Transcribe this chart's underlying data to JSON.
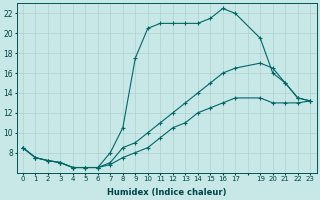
{
  "title": "",
  "xlabel": "Humidex (Indice chaleur)",
  "ylabel": "",
  "xlim": [
    -0.5,
    23.5
  ],
  "ylim": [
    6,
    23
  ],
  "yticks": [
    8,
    10,
    12,
    14,
    16,
    18,
    20,
    22
  ],
  "xtick_labels": [
    "0",
    "1",
    "2",
    "3",
    "4",
    "5",
    "6",
    "7",
    "8",
    "9",
    "10",
    "11",
    "12",
    "13",
    "14",
    "15",
    "16",
    "17",
    "",
    "19",
    "20",
    "21",
    "22",
    "23"
  ],
  "background_color": "#c8e8e8",
  "grid_color": "#b0d0d0",
  "line_color": "#006666",
  "line_width": 0.8,
  "marker": "P",
  "marker_size": 2.5,
  "series": [
    {
      "x": [
        0,
        1,
        2,
        3,
        4,
        5,
        6,
        7,
        8,
        9,
        10,
        11,
        12,
        13,
        14,
        15,
        16,
        17,
        19,
        20,
        21,
        22,
        23
      ],
      "y": [
        8.5,
        7.5,
        7.2,
        7.0,
        6.5,
        6.5,
        6.5,
        8.0,
        10.5,
        17.5,
        20.5,
        21.0,
        21.0,
        21.0,
        21.0,
        21.5,
        22.5,
        22.0,
        19.5,
        16.0,
        15.0,
        13.5,
        13.2
      ]
    },
    {
      "x": [
        0,
        1,
        2,
        3,
        4,
        5,
        6,
        7,
        8,
        9,
        10,
        11,
        12,
        13,
        14,
        15,
        16,
        17,
        19,
        20,
        21,
        22,
        23
      ],
      "y": [
        8.5,
        7.5,
        7.2,
        7.0,
        6.5,
        6.5,
        6.5,
        7.0,
        8.5,
        9.0,
        10.0,
        11.0,
        12.0,
        13.0,
        14.0,
        15.0,
        16.0,
        16.5,
        17.0,
        16.5,
        15.0,
        13.5,
        13.2
      ]
    },
    {
      "x": [
        0,
        1,
        2,
        3,
        4,
        5,
        6,
        7,
        8,
        9,
        10,
        11,
        12,
        13,
        14,
        15,
        16,
        17,
        19,
        20,
        21,
        22,
        23
      ],
      "y": [
        8.5,
        7.5,
        7.2,
        7.0,
        6.5,
        6.5,
        6.5,
        6.8,
        7.5,
        8.0,
        8.5,
        9.5,
        10.5,
        11.0,
        12.0,
        12.5,
        13.0,
        13.5,
        13.5,
        13.0,
        13.0,
        13.0,
        13.2
      ]
    }
  ]
}
